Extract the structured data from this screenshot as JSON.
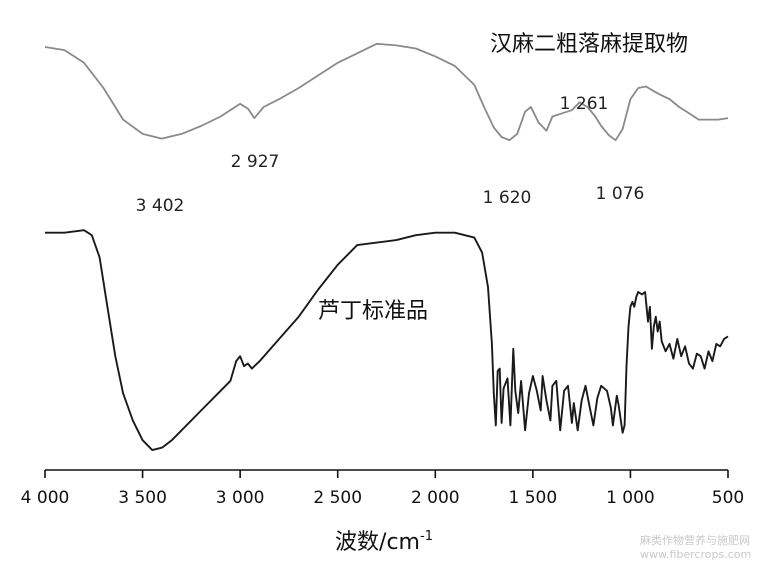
{
  "chart_data": {
    "type": "line",
    "x_axis": {
      "label": "波数",
      "unit": "/cm",
      "unit_superscript": "-1",
      "range": [
        4000,
        500
      ],
      "reversed": true,
      "ticks": [
        4000,
        3500,
        3000,
        2500,
        2000,
        1500,
        1000,
        500
      ],
      "tick_labels": [
        "4 000",
        "3 500",
        "3 000",
        "2 500",
        "2 000",
        "1 500",
        "1 000",
        "500"
      ]
    },
    "y_axis": {
      "shown": false,
      "relative": true
    },
    "grid": false,
    "series": [
      {
        "name": "汉麻二粗落麻提取物",
        "color": "#8a8a8a",
        "points": [
          [
            4000,
            0.88
          ],
          [
            3900,
            0.86
          ],
          [
            3800,
            0.78
          ],
          [
            3700,
            0.62
          ],
          [
            3600,
            0.42
          ],
          [
            3500,
            0.33
          ],
          [
            3402,
            0.3
          ],
          [
            3300,
            0.33
          ],
          [
            3200,
            0.38
          ],
          [
            3100,
            0.44
          ],
          [
            3000,
            0.52
          ],
          [
            2960,
            0.49
          ],
          [
            2927,
            0.43
          ],
          [
            2880,
            0.5
          ],
          [
            2800,
            0.55
          ],
          [
            2700,
            0.62
          ],
          [
            2600,
            0.7
          ],
          [
            2500,
            0.78
          ],
          [
            2400,
            0.84
          ],
          [
            2300,
            0.9
          ],
          [
            2200,
            0.89
          ],
          [
            2100,
            0.87
          ],
          [
            2000,
            0.82
          ],
          [
            1900,
            0.76
          ],
          [
            1800,
            0.64
          ],
          [
            1750,
            0.5
          ],
          [
            1700,
            0.37
          ],
          [
            1660,
            0.31
          ],
          [
            1620,
            0.29
          ],
          [
            1580,
            0.33
          ],
          [
            1540,
            0.47
          ],
          [
            1510,
            0.5
          ],
          [
            1470,
            0.4
          ],
          [
            1430,
            0.35
          ],
          [
            1400,
            0.44
          ],
          [
            1350,
            0.46
          ],
          [
            1300,
            0.48
          ],
          [
            1261,
            0.53
          ],
          [
            1220,
            0.5
          ],
          [
            1180,
            0.44
          ],
          [
            1150,
            0.38
          ],
          [
            1110,
            0.32
          ],
          [
            1076,
            0.29
          ],
          [
            1040,
            0.36
          ],
          [
            1000,
            0.55
          ],
          [
            960,
            0.62
          ],
          [
            920,
            0.63
          ],
          [
            880,
            0.6
          ],
          [
            850,
            0.58
          ],
          [
            800,
            0.55
          ],
          [
            750,
            0.5
          ],
          [
            700,
            0.46
          ],
          [
            650,
            0.42
          ],
          [
            600,
            0.42
          ],
          [
            550,
            0.42
          ],
          [
            500,
            0.43
          ]
        ],
        "peak_labels": [
          "3 402",
          "2 927",
          "1 620",
          "1 261",
          "1 076"
        ]
      },
      {
        "name": "芦丁标准品",
        "color": "#1a1a1a",
        "points": [
          [
            4000,
            0.9
          ],
          [
            3900,
            0.9
          ],
          [
            3800,
            0.91
          ],
          [
            3760,
            0.89
          ],
          [
            3720,
            0.8
          ],
          [
            3680,
            0.6
          ],
          [
            3640,
            0.4
          ],
          [
            3600,
            0.25
          ],
          [
            3550,
            0.14
          ],
          [
            3500,
            0.06
          ],
          [
            3450,
            0.02
          ],
          [
            3400,
            0.03
          ],
          [
            3350,
            0.06
          ],
          [
            3300,
            0.1
          ],
          [
            3200,
            0.18
          ],
          [
            3100,
            0.26
          ],
          [
            3050,
            0.3
          ],
          [
            3020,
            0.38
          ],
          [
            3000,
            0.4
          ],
          [
            2980,
            0.36
          ],
          [
            2960,
            0.37
          ],
          [
            2940,
            0.35
          ],
          [
            2900,
            0.38
          ],
          [
            2800,
            0.47
          ],
          [
            2700,
            0.56
          ],
          [
            2600,
            0.67
          ],
          [
            2500,
            0.77
          ],
          [
            2400,
            0.85
          ],
          [
            2300,
            0.86
          ],
          [
            2200,
            0.87
          ],
          [
            2100,
            0.89
          ],
          [
            2000,
            0.9
          ],
          [
            1900,
            0.9
          ],
          [
            1800,
            0.88
          ],
          [
            1760,
            0.82
          ],
          [
            1730,
            0.68
          ],
          [
            1710,
            0.45
          ],
          [
            1700,
            0.25
          ],
          [
            1690,
            0.12
          ],
          [
            1680,
            0.34
          ],
          [
            1670,
            0.35
          ],
          [
            1660,
            0.13
          ],
          [
            1650,
            0.27
          ],
          [
            1630,
            0.31
          ],
          [
            1615,
            0.12
          ],
          [
            1600,
            0.43
          ],
          [
            1590,
            0.26
          ],
          [
            1575,
            0.17
          ],
          [
            1560,
            0.3
          ],
          [
            1540,
            0.1
          ],
          [
            1520,
            0.25
          ],
          [
            1500,
            0.32
          ],
          [
            1480,
            0.26
          ],
          [
            1460,
            0.18
          ],
          [
            1450,
            0.32
          ],
          [
            1430,
            0.22
          ],
          [
            1410,
            0.14
          ],
          [
            1400,
            0.28
          ],
          [
            1380,
            0.3
          ],
          [
            1360,
            0.1
          ],
          [
            1340,
            0.26
          ],
          [
            1320,
            0.28
          ],
          [
            1300,
            0.13
          ],
          [
            1290,
            0.21
          ],
          [
            1270,
            0.1
          ],
          [
            1250,
            0.22
          ],
          [
            1230,
            0.28
          ],
          [
            1210,
            0.2
          ],
          [
            1190,
            0.12
          ],
          [
            1170,
            0.23
          ],
          [
            1150,
            0.28
          ],
          [
            1120,
            0.26
          ],
          [
            1100,
            0.19
          ],
          [
            1090,
            0.12
          ],
          [
            1070,
            0.24
          ],
          [
            1060,
            0.2
          ],
          [
            1040,
            0.09
          ],
          [
            1030,
            0.12
          ],
          [
            1020,
            0.36
          ],
          [
            1010,
            0.52
          ],
          [
            1000,
            0.6
          ],
          [
            990,
            0.62
          ],
          [
            980,
            0.6
          ],
          [
            970,
            0.64
          ],
          [
            960,
            0.66
          ],
          [
            940,
            0.65
          ],
          [
            925,
            0.66
          ],
          [
            910,
            0.54
          ],
          [
            900,
            0.6
          ],
          [
            890,
            0.43
          ],
          [
            880,
            0.52
          ],
          [
            870,
            0.56
          ],
          [
            860,
            0.5
          ],
          [
            850,
            0.54
          ],
          [
            840,
            0.46
          ],
          [
            820,
            0.42
          ],
          [
            800,
            0.45
          ],
          [
            780,
            0.39
          ],
          [
            760,
            0.47
          ],
          [
            740,
            0.4
          ],
          [
            720,
            0.44
          ],
          [
            700,
            0.37
          ],
          [
            680,
            0.35
          ],
          [
            660,
            0.41
          ],
          [
            640,
            0.4
          ],
          [
            620,
            0.35
          ],
          [
            600,
            0.42
          ],
          [
            580,
            0.38
          ],
          [
            560,
            0.45
          ],
          [
            540,
            0.44
          ],
          [
            520,
            0.47
          ],
          [
            500,
            0.48
          ]
        ]
      }
    ]
  },
  "watermark": {
    "line1": "麻类作物营养与施肥网",
    "line2": "www.fibercrops.com"
  }
}
